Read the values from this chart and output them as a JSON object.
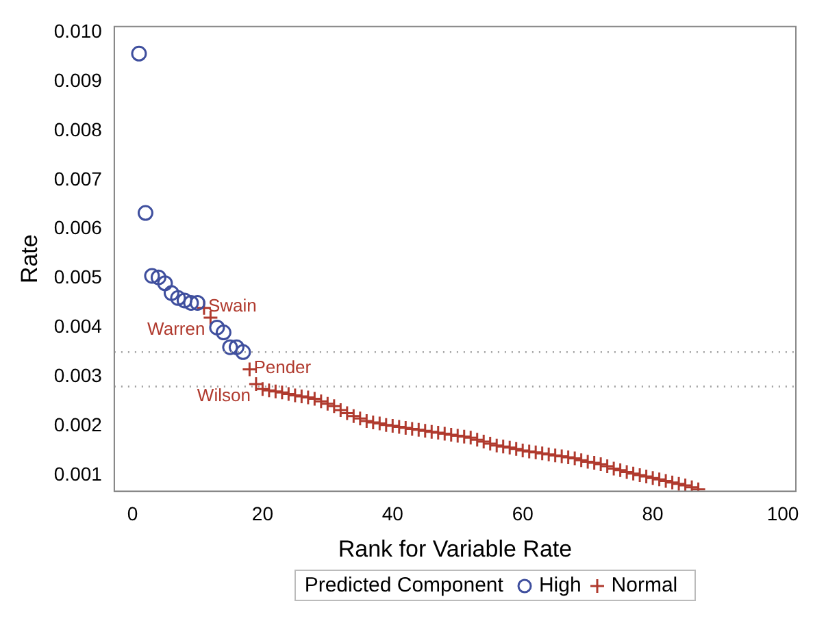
{
  "chart_data": {
    "type": "scatter",
    "xlabel": "Rank for Variable Rate",
    "ylabel": "Rate",
    "legend_title": "Predicted Component",
    "legend": "bottom",
    "grid": false,
    "xlim": [
      -2.8,
      102
    ],
    "xticks": [
      0,
      20,
      40,
      60,
      80,
      100
    ],
    "ylim": [
      0.00067,
      0.01012
    ],
    "yticks": [
      0.001,
      0.002,
      0.003,
      0.004,
      0.005,
      0.006,
      0.007,
      0.008,
      0.009,
      {
        "value": 0.01,
        "label": "0.010"
      }
    ],
    "series": [
      {
        "name": "High",
        "color": "#3f4f9e",
        "marker": "circle",
        "x": [
          1,
          2,
          3,
          4,
          5,
          6,
          7,
          8,
          9,
          10,
          13,
          14,
          15,
          16,
          17
        ],
        "values": [
          0.00957,
          0.00633,
          0.00505,
          0.00502,
          0.0049,
          0.0047,
          0.0046,
          0.00455,
          0.0045,
          0.0045,
          0.004,
          0.0039,
          0.0036,
          0.0036,
          0.0035
        ]
      },
      {
        "name": "Normal",
        "color": "#b03a2e",
        "marker": "cross",
        "x": [
          11,
          12,
          18,
          19,
          20,
          21,
          22,
          23,
          24,
          25,
          26,
          27,
          28,
          29,
          30,
          31,
          32,
          33,
          34,
          35,
          36,
          37,
          38,
          39,
          40,
          41,
          42,
          43,
          44,
          45,
          46,
          47,
          48,
          49,
          50,
          51,
          52,
          53,
          54,
          55,
          56,
          57,
          58,
          59,
          60,
          61,
          62,
          63,
          64,
          65,
          66,
          67,
          68,
          69,
          70,
          71,
          72,
          73,
          74,
          75,
          76,
          77,
          78,
          79,
          80,
          81,
          82,
          83,
          84,
          85,
          86,
          87
        ],
        "values": [
          0.0044,
          0.0042,
          0.00315,
          0.00285,
          0.00275,
          0.00272,
          0.0027,
          0.00268,
          0.00265,
          0.00262,
          0.0026,
          0.00258,
          0.00255,
          0.0025,
          0.00245,
          0.0024,
          0.00232,
          0.00226,
          0.0022,
          0.00215,
          0.0021,
          0.00207,
          0.00205,
          0.00202,
          0.002,
          0.00198,
          0.00196,
          0.00194,
          0.00192,
          0.0019,
          0.00188,
          0.00186,
          0.00184,
          0.00182,
          0.0018,
          0.00178,
          0.00176,
          0.00172,
          0.00168,
          0.00164,
          0.0016,
          0.00158,
          0.00156,
          0.00153,
          0.0015,
          0.00148,
          0.00146,
          0.00144,
          0.00142,
          0.0014,
          0.00138,
          0.00136,
          0.00134,
          0.0013,
          0.00127,
          0.00125,
          0.00122,
          0.00118,
          0.00113,
          0.0011,
          0.00106,
          0.00103,
          0.001,
          0.00097,
          0.00094,
          0.00091,
          0.00088,
          0.00085,
          0.00082,
          0.00079,
          0.00075,
          0.00071
        ]
      }
    ],
    "ref_lines": [
      {
        "axis": "y",
        "value": 0.0035,
        "color": "#a0a0a0",
        "line_style": "dotted"
      },
      {
        "axis": "y",
        "value": 0.0028,
        "color": "#a0a0a0",
        "line_style": "dotted"
      }
    ],
    "annotations": [
      {
        "text": "Swain",
        "x": 11,
        "y": 0.0044
      },
      {
        "text": "Warren",
        "x": 12,
        "y": 0.0042
      },
      {
        "text": "Pender",
        "x": 18,
        "y": 0.00315
      },
      {
        "text": "Wilson",
        "x": 19,
        "y": 0.00285
      }
    ]
  }
}
